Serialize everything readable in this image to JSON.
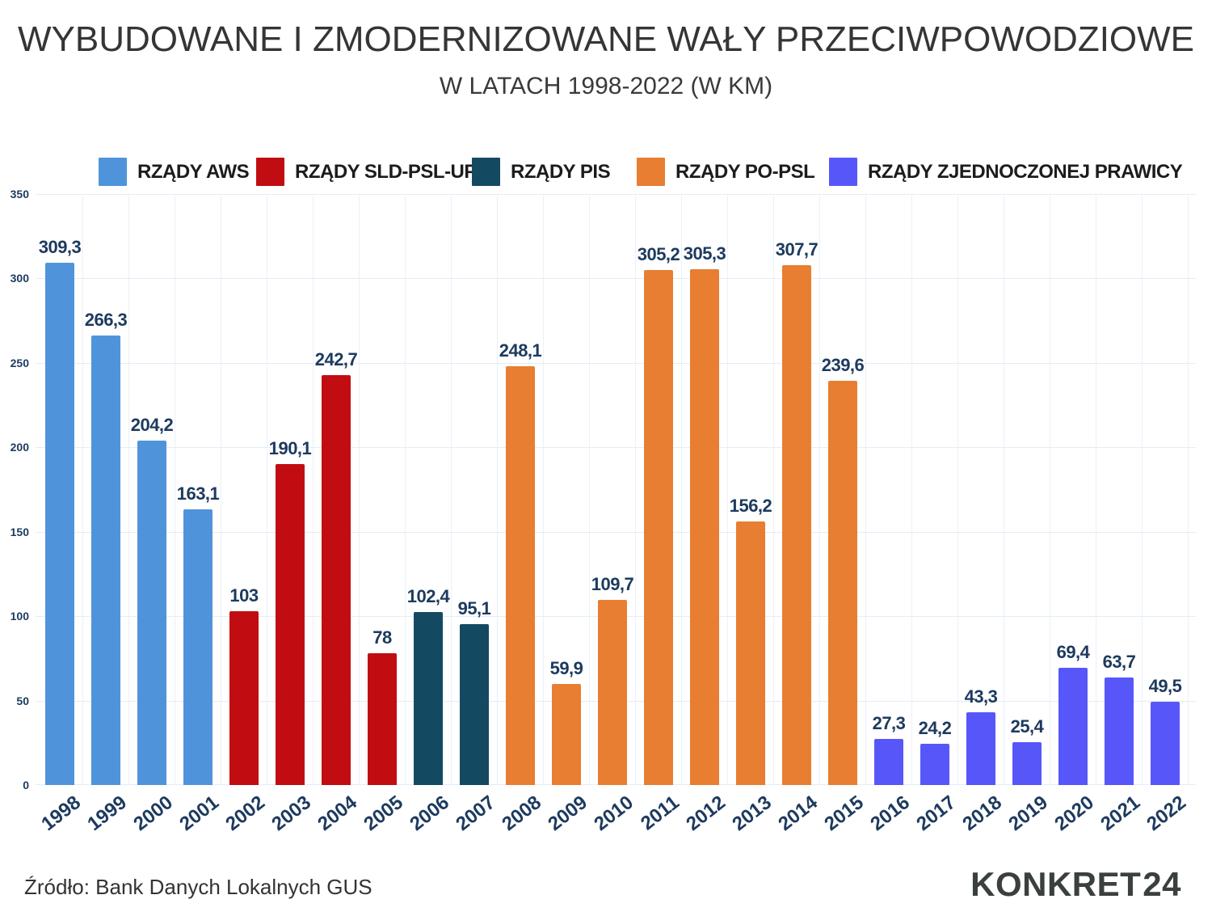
{
  "title": "WYBUDOWANE I ZMODERNIZOWANE WAŁY PRZECIWPOWODZIOWE",
  "subtitle": "W LATACH 1998-2022 (W KM)",
  "source": "Źródło: Bank Danych Lokalnych GUS",
  "logo": {
    "text": "KONKRET",
    "number": "24"
  },
  "colors": {
    "aws": "#4f94db",
    "sld": "#c10d12",
    "pis": "#134a62",
    "po": "#e87e31",
    "zp": "#5757f9",
    "value_label": "#1d3a5e",
    "gridline": "#e3ecf6"
  },
  "legend": [
    {
      "gov": "aws",
      "label": "RZĄDY AWS"
    },
    {
      "gov": "sld",
      "label": "RZĄDY SLD-PSL-UP"
    },
    {
      "gov": "pis",
      "label": "RZĄDY PIS"
    },
    {
      "gov": "po",
      "label": "RZĄDY PO-PSL"
    },
    {
      "gov": "zp",
      "label": "RZĄDY ZJEDNOCZONEJ PRAWICY"
    }
  ],
  "chart_data": {
    "type": "bar",
    "title": "WYBUDOWANE I ZMODERNIZOWANE WAŁY PRZECIWPOWODZIOWE",
    "subtitle": "W LATACH 1998-2022 (W KM)",
    "unit": "km",
    "ylim": [
      0,
      350
    ],
    "yticks": [
      0,
      50,
      100,
      150,
      200,
      250,
      300,
      350
    ],
    "grid": true,
    "legend_position": "top",
    "bars": [
      {
        "year": "1998",
        "value": 309.3,
        "label": "309,3",
        "gov": "aws"
      },
      {
        "year": "1999",
        "value": 266.3,
        "label": "266,3",
        "gov": "aws"
      },
      {
        "year": "2000",
        "value": 204.2,
        "label": "204,2",
        "gov": "aws"
      },
      {
        "year": "2001",
        "value": 163.1,
        "label": "163,1",
        "gov": "aws"
      },
      {
        "year": "2002",
        "value": 103,
        "label": "103",
        "gov": "sld"
      },
      {
        "year": "2003",
        "value": 190.1,
        "label": "190,1",
        "gov": "sld"
      },
      {
        "year": "2004",
        "value": 242.7,
        "label": "242,7",
        "gov": "sld"
      },
      {
        "year": "2005",
        "value": 78,
        "label": "78",
        "gov": "sld"
      },
      {
        "year": "2006",
        "value": 102.4,
        "label": "102,4",
        "gov": "pis"
      },
      {
        "year": "2007",
        "value": 95.1,
        "label": "95,1",
        "gov": "pis"
      },
      {
        "year": "2008",
        "value": 248.1,
        "label": "248,1",
        "gov": "po"
      },
      {
        "year": "2009",
        "value": 59.9,
        "label": "59,9",
        "gov": "po"
      },
      {
        "year": "2010",
        "value": 109.7,
        "label": "109,7",
        "gov": "po"
      },
      {
        "year": "2011",
        "value": 305.2,
        "label": "305,2",
        "gov": "po"
      },
      {
        "year": "2012",
        "value": 305.3,
        "label": "305,3",
        "gov": "po"
      },
      {
        "year": "2013",
        "value": 156.2,
        "label": "156,2",
        "gov": "po"
      },
      {
        "year": "2014",
        "value": 307.7,
        "label": "307,7",
        "gov": "po"
      },
      {
        "year": "2015",
        "value": 239.6,
        "label": "239,6",
        "gov": "po"
      },
      {
        "year": "2016",
        "value": 27.3,
        "label": "27,3",
        "gov": "zp"
      },
      {
        "year": "2017",
        "value": 24.2,
        "label": "24,2",
        "gov": "zp"
      },
      {
        "year": "2018",
        "value": 43.3,
        "label": "43,3",
        "gov": "zp"
      },
      {
        "year": "2019",
        "value": 25.4,
        "label": "25,4",
        "gov": "zp"
      },
      {
        "year": "2020",
        "value": 69.4,
        "label": "69,4",
        "gov": "zp"
      },
      {
        "year": "2021",
        "value": 63.7,
        "label": "63,7",
        "gov": "zp"
      },
      {
        "year": "2022",
        "value": 49.5,
        "label": "49,5",
        "gov": "zp"
      }
    ]
  }
}
